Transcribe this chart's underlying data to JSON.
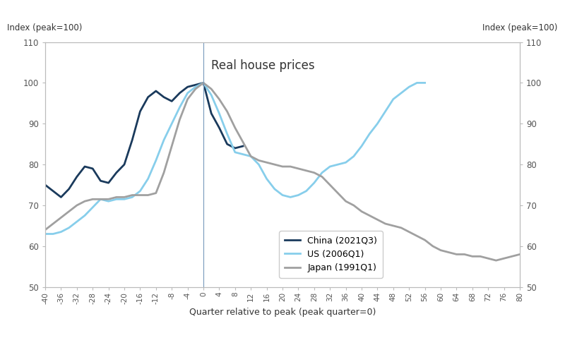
{
  "title": "Real house prices",
  "ylabel_left": "Index (peak=100)",
  "ylabel_right": "Index (peak=100)",
  "xlabel": "Quarter relative to peak (peak quarter=0)",
  "ylim": [
    50,
    110
  ],
  "xlim": [
    -40,
    80
  ],
  "xticks": [
    -40,
    -36,
    -32,
    -28,
    -24,
    -20,
    -16,
    -12,
    -8,
    -4,
    0,
    4,
    8,
    12,
    16,
    20,
    24,
    28,
    32,
    36,
    40,
    44,
    48,
    52,
    56,
    60,
    64,
    68,
    72,
    76,
    80
  ],
  "yticks": [
    50,
    60,
    70,
    80,
    90,
    100,
    110
  ],
  "vline_x": 0,
  "background_color": "#ffffff",
  "legend_entries": [
    "China (2021Q3)",
    "US (2006Q1)",
    "Japan (1991Q1)"
  ],
  "china_color": "#1a3a5c",
  "us_color": "#87ceeb",
  "japan_color": "#a0a0a0",
  "vline_color": "#7799bb",
  "spine_color": "#bbbbbb",
  "tick_label_color": "#555555",
  "axis_label_color": "#333333",
  "title_color": "#333333",
  "china_x": [
    -40,
    -38,
    -36,
    -34,
    -32,
    -30,
    -28,
    -26,
    -24,
    -22,
    -20,
    -18,
    -16,
    -14,
    -12,
    -10,
    -8,
    -6,
    -4,
    -2,
    0,
    2,
    4,
    6,
    8,
    10
  ],
  "china_y": [
    75.0,
    73.5,
    72.0,
    74.0,
    77.0,
    79.5,
    79.0,
    76.0,
    75.5,
    78.0,
    80.0,
    86.0,
    93.0,
    96.5,
    98.0,
    96.5,
    95.5,
    97.5,
    99.0,
    99.5,
    100.0,
    92.5,
    89.0,
    85.0,
    84.0,
    84.5
  ],
  "us_x": [
    -40,
    -38,
    -36,
    -34,
    -32,
    -30,
    -28,
    -26,
    -24,
    -22,
    -20,
    -18,
    -16,
    -14,
    -12,
    -10,
    -8,
    -6,
    -4,
    -2,
    0,
    2,
    4,
    6,
    8,
    10,
    12,
    14,
    16,
    18,
    20,
    22,
    24,
    26,
    28,
    30,
    32,
    34,
    36,
    38,
    40,
    42,
    44,
    46,
    48,
    50,
    52,
    54,
    56
  ],
  "us_y": [
    63.0,
    63.0,
    63.5,
    64.5,
    66.0,
    67.5,
    69.5,
    71.5,
    71.0,
    71.5,
    71.5,
    72.0,
    73.5,
    76.5,
    81.0,
    86.0,
    90.0,
    94.0,
    97.5,
    99.0,
    100.0,
    97.0,
    92.5,
    87.5,
    83.0,
    82.5,
    82.0,
    80.0,
    76.5,
    74.0,
    72.5,
    72.0,
    72.5,
    73.5,
    75.5,
    78.0,
    79.5,
    80.0,
    80.5,
    82.0,
    84.5,
    87.5,
    90.0,
    93.0,
    96.0,
    97.5,
    99.0,
    100.0,
    100.0
  ],
  "japan_x": [
    -40,
    -38,
    -36,
    -34,
    -32,
    -30,
    -28,
    -26,
    -24,
    -22,
    -20,
    -18,
    -16,
    -14,
    -12,
    -10,
    -8,
    -6,
    -4,
    -2,
    0,
    2,
    4,
    6,
    8,
    10,
    12,
    14,
    16,
    18,
    20,
    22,
    24,
    26,
    28,
    30,
    32,
    34,
    36,
    38,
    40,
    42,
    44,
    46,
    48,
    50,
    52,
    54,
    56,
    58,
    60,
    62,
    64,
    66,
    68,
    70,
    72,
    74,
    76,
    78,
    80
  ],
  "japan_y": [
    64.0,
    65.5,
    67.0,
    68.5,
    70.0,
    71.0,
    71.5,
    71.5,
    71.5,
    72.0,
    72.0,
    72.5,
    72.5,
    72.5,
    73.0,
    78.0,
    84.5,
    91.0,
    96.0,
    98.5,
    100.0,
    98.5,
    96.0,
    93.0,
    89.0,
    85.5,
    82.0,
    81.0,
    80.5,
    80.0,
    79.5,
    79.5,
    79.0,
    78.5,
    78.0,
    77.0,
    75.0,
    73.0,
    71.0,
    70.0,
    68.5,
    67.5,
    66.5,
    65.5,
    65.0,
    64.5,
    63.5,
    62.5,
    61.5,
    60.0,
    59.0,
    58.5,
    58.0,
    58.0,
    57.5,
    57.5,
    57.0,
    56.5,
    57.0,
    57.5,
    58.0
  ]
}
